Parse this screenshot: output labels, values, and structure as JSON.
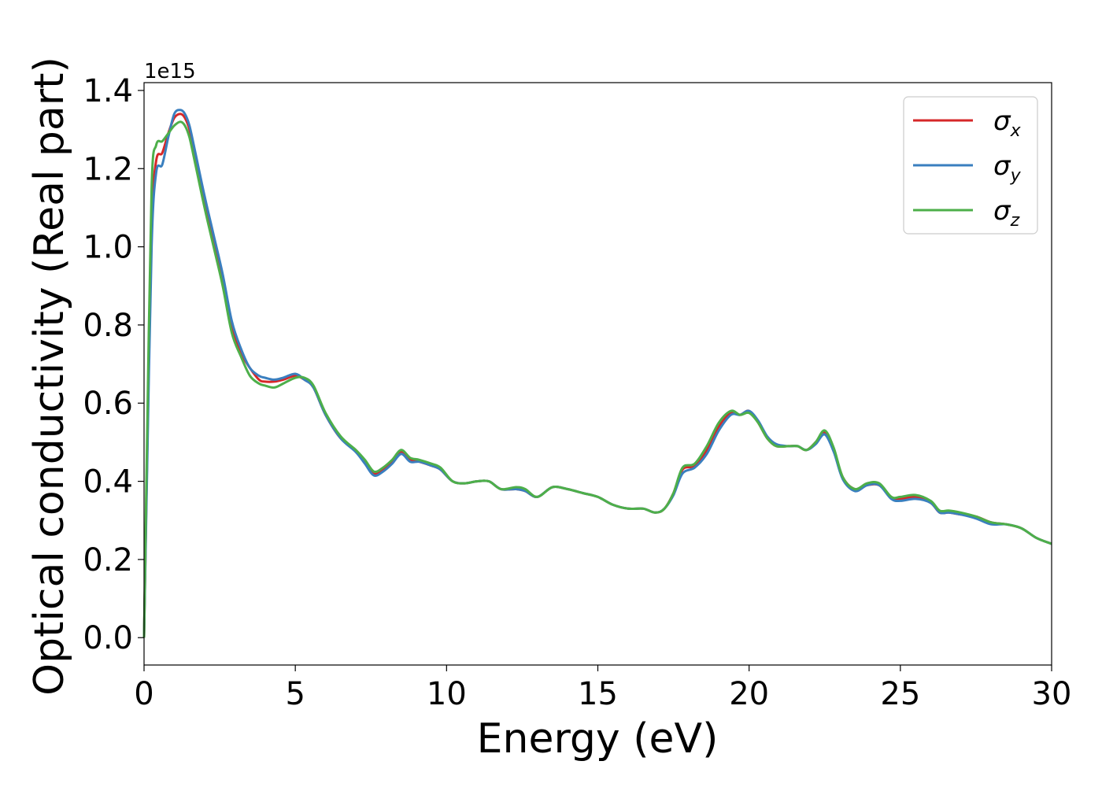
{
  "chart_data": {
    "type": "line",
    "title": "",
    "xlabel": "Energy (eV)",
    "ylabel": "Optical conductivity (Real part)",
    "y_offset_text": "1e15",
    "y_scale": 1000000000000000.0,
    "xlim": [
      0,
      30
    ],
    "ylim": [
      -0.07,
      1.42
    ],
    "xticks": [
      0,
      5,
      10,
      15,
      20,
      25,
      30
    ],
    "xtick_labels": [
      "0",
      "5",
      "10",
      "15",
      "20",
      "25",
      "30"
    ],
    "yticks": [
      0.0,
      0.2,
      0.4,
      0.6,
      0.8,
      1.0,
      1.2,
      1.4
    ],
    "ytick_labels": [
      "0.0",
      "0.2",
      "0.4",
      "0.6",
      "0.8",
      "1.0",
      "1.2",
      "1.4"
    ],
    "grid": false,
    "legend": {
      "position": "top-right",
      "entries": [
        {
          "symbol": "σ",
          "sub": "x"
        },
        {
          "symbol": "σ",
          "sub": "y"
        },
        {
          "symbol": "σ",
          "sub": "z"
        }
      ]
    },
    "colors": [
      "#d62728",
      "#3a7fbf",
      "#4daf4a"
    ],
    "x": [
      0,
      0.1,
      0.25,
      0.4,
      0.6,
      0.8,
      1.0,
      1.2,
      1.35,
      1.5,
      1.7,
      2.0,
      2.3,
      2.6,
      2.9,
      3.2,
      3.5,
      3.8,
      4.0,
      4.3,
      4.6,
      5.0,
      5.3,
      5.6,
      6.0,
      6.5,
      7.0,
      7.3,
      7.6,
      7.9,
      8.2,
      8.5,
      8.8,
      9.1,
      9.5,
      9.8,
      10.2,
      10.6,
      11.0,
      11.4,
      11.8,
      12.3,
      12.6,
      13.0,
      13.5,
      14.0,
      14.5,
      15.0,
      15.5,
      16.0,
      16.5,
      16.9,
      17.2,
      17.5,
      17.8,
      18.2,
      18.6,
      19.0,
      19.4,
      19.7,
      20.0,
      20.3,
      20.6,
      20.9,
      21.3,
      21.6,
      21.9,
      22.2,
      22.5,
      22.8,
      23.1,
      23.5,
      23.9,
      24.3,
      24.7,
      25.0,
      25.5,
      26.0,
      26.3,
      26.6,
      27.0,
      27.5,
      28.0,
      28.5,
      29.0,
      29.5,
      30.0
    ],
    "series": [
      {
        "name": "σx",
        "values": [
          0.0,
          0.45,
          1.05,
          1.22,
          1.24,
          1.29,
          1.33,
          1.34,
          1.33,
          1.3,
          1.23,
          1.12,
          1.02,
          0.92,
          0.8,
          0.73,
          0.69,
          0.66,
          0.655,
          0.655,
          0.66,
          0.67,
          0.66,
          0.64,
          0.57,
          0.51,
          0.48,
          0.45,
          0.42,
          0.43,
          0.45,
          0.475,
          0.455,
          0.45,
          0.44,
          0.43,
          0.4,
          0.395,
          0.4,
          0.4,
          0.38,
          0.38,
          0.375,
          0.36,
          0.385,
          0.38,
          0.37,
          0.36,
          0.34,
          0.33,
          0.33,
          0.32,
          0.33,
          0.37,
          0.43,
          0.44,
          0.48,
          0.54,
          0.575,
          0.57,
          0.58,
          0.55,
          0.51,
          0.49,
          0.49,
          0.49,
          0.48,
          0.5,
          0.525,
          0.48,
          0.41,
          0.38,
          0.39,
          0.39,
          0.36,
          0.355,
          0.36,
          0.345,
          0.32,
          0.32,
          0.315,
          0.31,
          0.295,
          0.29,
          0.28,
          0.255,
          0.24
        ]
      },
      {
        "name": "σy",
        "values": [
          0.0,
          0.42,
          1.0,
          1.19,
          1.21,
          1.28,
          1.34,
          1.35,
          1.34,
          1.31,
          1.24,
          1.13,
          1.03,
          0.93,
          0.81,
          0.74,
          0.69,
          0.67,
          0.665,
          0.66,
          0.665,
          0.675,
          0.66,
          0.64,
          0.57,
          0.51,
          0.475,
          0.445,
          0.415,
          0.425,
          0.445,
          0.47,
          0.45,
          0.45,
          0.44,
          0.43,
          0.4,
          0.395,
          0.4,
          0.4,
          0.38,
          0.38,
          0.375,
          0.36,
          0.385,
          0.38,
          0.37,
          0.36,
          0.34,
          0.33,
          0.33,
          0.32,
          0.33,
          0.365,
          0.42,
          0.435,
          0.47,
          0.53,
          0.57,
          0.57,
          0.58,
          0.555,
          0.515,
          0.495,
          0.49,
          0.49,
          0.48,
          0.495,
          0.52,
          0.475,
          0.405,
          0.375,
          0.39,
          0.39,
          0.355,
          0.35,
          0.355,
          0.345,
          0.32,
          0.32,
          0.315,
          0.305,
          0.29,
          0.29,
          0.28,
          0.255,
          0.24
        ]
      },
      {
        "name": "σz",
        "values": [
          0.0,
          0.5,
          1.15,
          1.26,
          1.27,
          1.29,
          1.31,
          1.32,
          1.31,
          1.28,
          1.21,
          1.1,
          1.0,
          0.9,
          0.78,
          0.72,
          0.67,
          0.65,
          0.645,
          0.64,
          0.65,
          0.665,
          0.665,
          0.645,
          0.575,
          0.515,
          0.48,
          0.455,
          0.425,
          0.435,
          0.455,
          0.48,
          0.46,
          0.455,
          0.445,
          0.435,
          0.4,
          0.395,
          0.4,
          0.4,
          0.38,
          0.385,
          0.38,
          0.36,
          0.385,
          0.38,
          0.37,
          0.36,
          0.34,
          0.33,
          0.33,
          0.32,
          0.33,
          0.37,
          0.435,
          0.445,
          0.49,
          0.55,
          0.58,
          0.57,
          0.575,
          0.55,
          0.51,
          0.49,
          0.49,
          0.49,
          0.48,
          0.5,
          0.53,
          0.485,
          0.41,
          0.38,
          0.395,
          0.395,
          0.36,
          0.36,
          0.365,
          0.35,
          0.325,
          0.325,
          0.32,
          0.31,
          0.295,
          0.29,
          0.28,
          0.255,
          0.24
        ]
      }
    ]
  }
}
